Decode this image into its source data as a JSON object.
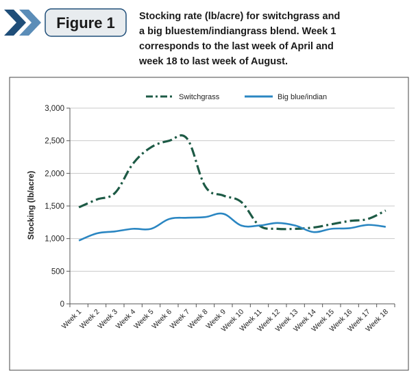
{
  "figure_badge": {
    "label": "Figure 1",
    "colors": {
      "chevron_dark": "#1f4e79",
      "chevron_light": "#5b8db8",
      "badge_fill": "#e8ecef"
    }
  },
  "caption": {
    "lines": [
      "Stocking rate (lb/acre) for switchgrass and",
      "a big bluestem/indiangrass blend. Week 1",
      "corresponds to the last week of April and",
      "week 18 to last week of August."
    ]
  },
  "chart_data": {
    "type": "line",
    "title": "",
    "xlabel": "",
    "ylabel": "Stocking (lb/acre)",
    "categories": [
      "Week 1",
      "Week 2",
      "Week 3",
      "Week 4",
      "Week 5",
      "Week 6",
      "Week 7",
      "Week 8",
      "Week 9",
      "Week 10",
      "Week 11",
      "Week 12",
      "Week 13",
      "Week 14",
      "Week 15",
      "Week 16",
      "Week 17",
      "Week 18"
    ],
    "ylim": [
      0,
      3000
    ],
    "yticks": [
      0,
      500,
      1000,
      1500,
      2000,
      2500,
      3000
    ],
    "ytick_labels": [
      "0",
      "500",
      "1,000",
      "1,500",
      "2,000",
      "2,500",
      "3,000"
    ],
    "grid": true,
    "legend_position": "top",
    "series": [
      {
        "name": "Switchgrass",
        "color": "#1d5a45",
        "dash": "dash-dot",
        "values": [
          1480,
          1600,
          1700,
          2150,
          2400,
          2500,
          2530,
          1800,
          1660,
          1560,
          1200,
          1150,
          1150,
          1170,
          1220,
          1270,
          1300,
          1430
        ]
      },
      {
        "name": "Big blue/indian",
        "color": "#2a86c2",
        "dash": "solid",
        "values": [
          970,
          1080,
          1110,
          1150,
          1150,
          1300,
          1320,
          1330,
          1380,
          1200,
          1200,
          1240,
          1200,
          1100,
          1150,
          1160,
          1210,
          1180
        ]
      }
    ]
  }
}
